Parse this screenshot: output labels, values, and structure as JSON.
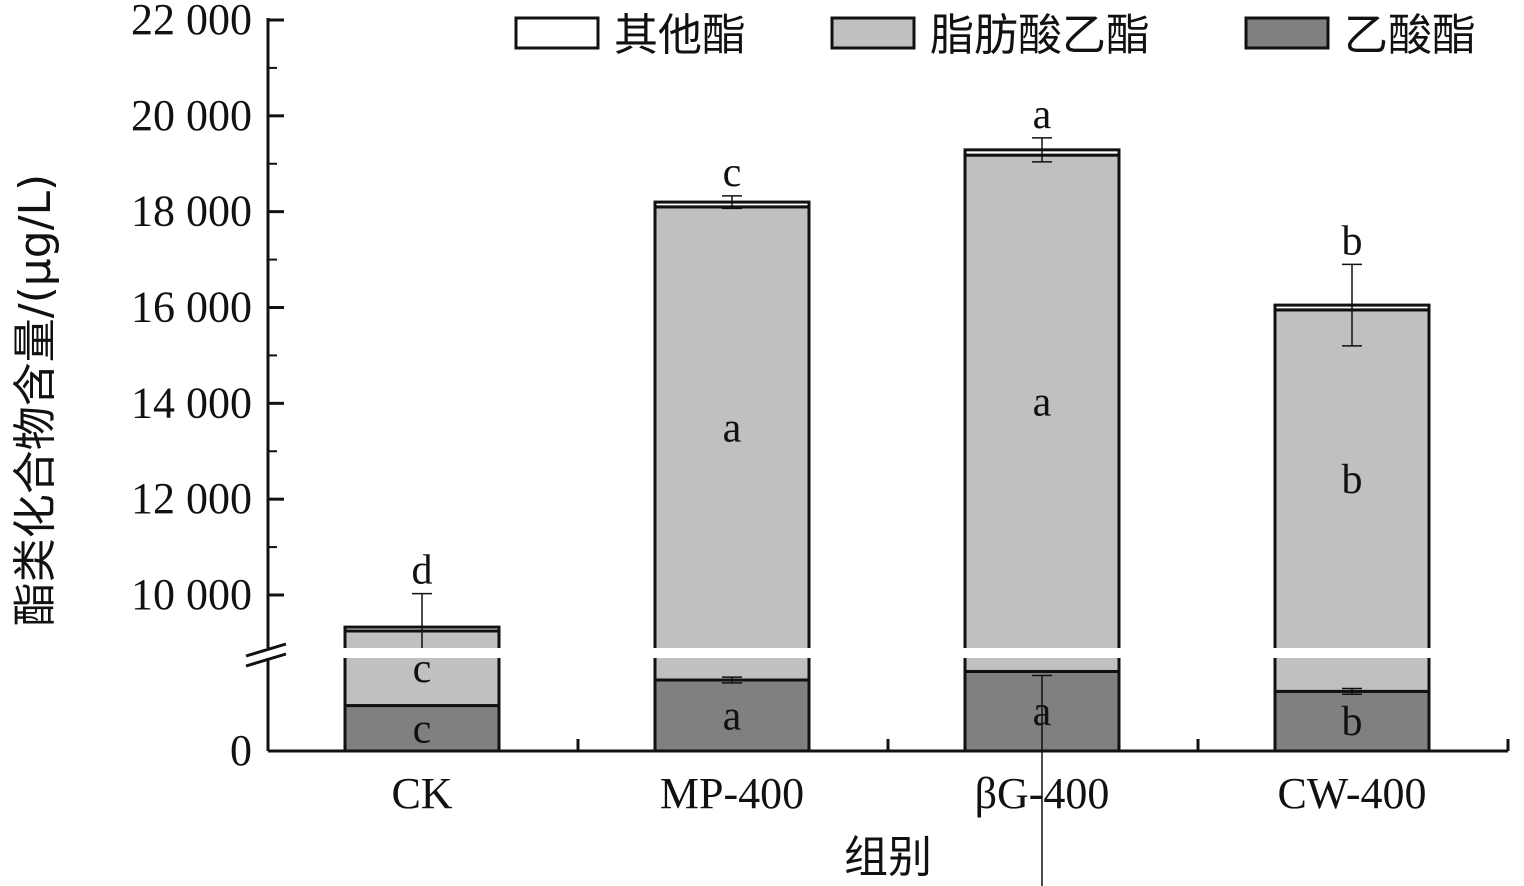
{
  "chart_data": {
    "type": "bar",
    "stacked": true,
    "xlabel": "组别",
    "ylabel": "酯类化合物含量/(μg/L)",
    "categories": [
      "CK",
      "MP-400",
      "βG-400",
      "CW-400"
    ],
    "y_axis_break": {
      "lower_range": [
        0,
        1400
      ],
      "upper_range": [
        9000,
        22000
      ]
    },
    "y_tick_labels": [
      "0",
      "10 000",
      "12 000",
      "14 000",
      "16 000",
      "18 000",
      "20 000",
      "22 000"
    ],
    "y_tick_values": [
      0,
      10000,
      12000,
      14000,
      16000,
      18000,
      20000,
      22000
    ],
    "legend_position": "top-right",
    "series": [
      {
        "name": "乙酸酯",
        "color": "#808080",
        "values": [
          800,
          1250,
          1400,
          1050
        ],
        "errors": [
          null,
          50,
          70,
          50
        ],
        "significance": [
          "c",
          "a",
          "a",
          "b"
        ]
      },
      {
        "name": "脂肪酸乙酯",
        "color": "#c0c0c0",
        "values": [
          8450,
          16850,
          17780,
          14900
        ],
        "errors": [
          null,
          null,
          null,
          null
        ],
        "significance": [
          "c",
          "a",
          "a",
          "b"
        ]
      },
      {
        "name": "其他酯",
        "color": "#ffffff",
        "values": [
          80,
          100,
          110,
          100
        ],
        "errors": [
          null,
          null,
          null,
          null
        ],
        "significance": [
          null,
          null,
          null,
          null
        ]
      }
    ],
    "totals": [
      9330,
      18200,
      19290,
      16050
    ],
    "total_errors": [
      700,
      130,
      250,
      850
    ],
    "total_significance": [
      "d",
      "c",
      "a",
      "b"
    ]
  }
}
